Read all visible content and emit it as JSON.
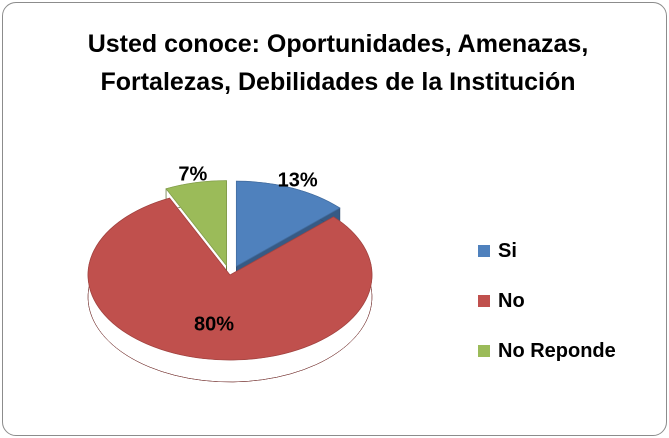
{
  "chart_data": {
    "type": "pie",
    "title": "Usted conoce: Oportunidades, Amenazas, Fortalezas, Debilidades de la Institución",
    "categories": [
      "Si",
      "No",
      "No Reponde"
    ],
    "values": [
      13,
      80,
      7
    ],
    "value_labels": [
      "13%",
      "80%",
      "7%"
    ],
    "colors": [
      "#4f81bd",
      "#c0504d",
      "#9bbb59"
    ],
    "legend": "right"
  }
}
